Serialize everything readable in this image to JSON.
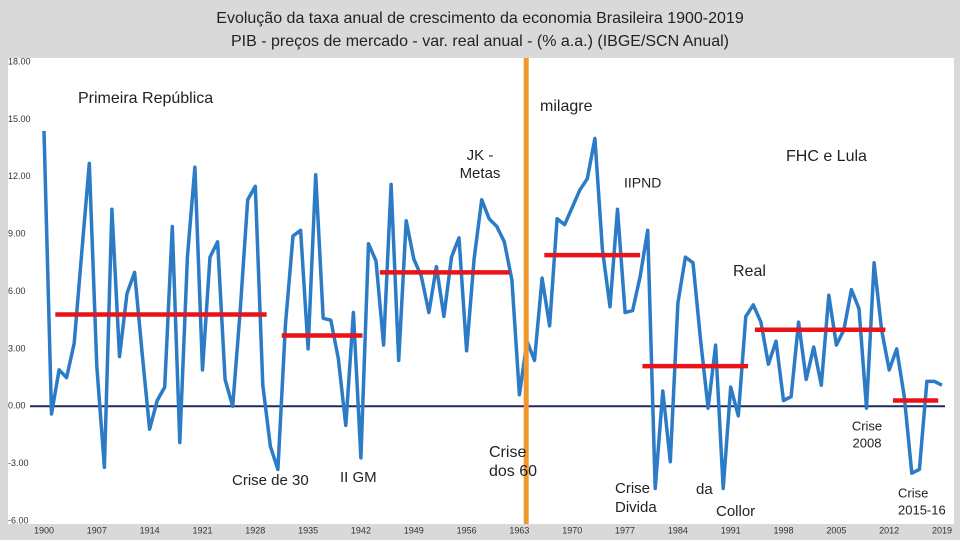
{
  "chart_data": {
    "type": "line",
    "title": "Evolução da taxa anual de crescimento da economia Brasileira 1900-2019",
    "subtitle": "PIB - preços de mercado - var. real anual - (% a.a.) (IBGE/SCN Anual)",
    "x": [
      1900,
      1901,
      1902,
      1903,
      1904,
      1905,
      1906,
      1907,
      1908,
      1909,
      1910,
      1911,
      1912,
      1913,
      1914,
      1915,
      1916,
      1917,
      1918,
      1919,
      1920,
      1921,
      1922,
      1923,
      1924,
      1925,
      1926,
      1927,
      1928,
      1929,
      1930,
      1931,
      1932,
      1933,
      1934,
      1935,
      1936,
      1937,
      1938,
      1939,
      1940,
      1941,
      1942,
      1943,
      1944,
      1945,
      1946,
      1947,
      1948,
      1949,
      1950,
      1951,
      1952,
      1953,
      1954,
      1955,
      1956,
      1957,
      1958,
      1959,
      1960,
      1961,
      1962,
      1963,
      1964,
      1965,
      1966,
      1967,
      1968,
      1969,
      1970,
      1971,
      1972,
      1973,
      1974,
      1975,
      1976,
      1977,
      1978,
      1979,
      1980,
      1981,
      1982,
      1983,
      1984,
      1985,
      1986,
      1987,
      1988,
      1989,
      1990,
      1991,
      1992,
      1993,
      1994,
      1995,
      1996,
      1997,
      1998,
      1999,
      2000,
      2001,
      2002,
      2003,
      2004,
      2005,
      2006,
      2007,
      2008,
      2009,
      2010,
      2011,
      2012,
      2013,
      2014,
      2015,
      2016,
      2017,
      2018,
      2019
    ],
    "series": [
      {
        "color": "#2b7bc6",
        "values": [
          14.4,
          -0.4,
          1.9,
          1.5,
          3.3,
          8.0,
          12.7,
          2.1,
          -3.2,
          10.3,
          2.6,
          5.9,
          7.0,
          2.8,
          -1.2,
          0.3,
          1.0,
          9.4,
          -1.9,
          7.8,
          12.5,
          1.9,
          7.8,
          8.6,
          1.4,
          0.0,
          5.0,
          10.8,
          11.5,
          1.1,
          -2.1,
          -3.3,
          4.3,
          8.9,
          9.2,
          3.0,
          12.1,
          4.6,
          4.5,
          2.5,
          -1.0,
          4.9,
          -2.7,
          8.5,
          7.6,
          3.2,
          11.6,
          2.4,
          9.7,
          7.7,
          6.8,
          4.9,
          7.3,
          4.7,
          7.8,
          8.8,
          2.9,
          7.7,
          10.8,
          9.8,
          9.4,
          8.6,
          6.6,
          0.6,
          3.4,
          2.4,
          6.7,
          4.2,
          9.8,
          9.5,
          10.4,
          11.3,
          11.9,
          14.0,
          8.2,
          5.2,
          10.3,
          4.9,
          5.0,
          6.8,
          9.2,
          -4.3,
          0.8,
          -2.9,
          5.4,
          7.8,
          7.5,
          3.5,
          -0.1,
          3.2,
          -4.3,
          1.0,
          -0.5,
          4.7,
          5.3,
          4.4,
          2.2,
          3.4,
          0.3,
          0.5,
          4.4,
          1.4,
          3.1,
          1.1,
          5.8,
          3.2,
          4.0,
          6.1,
          5.1,
          -0.1,
          7.5,
          4.0,
          1.9,
          3.0,
          0.5,
          -3.5,
          -3.3,
          1.3,
          1.3,
          1.1
        ]
      }
    ],
    "period_averages": {
      "color": "#e8141a",
      "segments": [
        {
          "start": 1901.5,
          "end": 1929.5,
          "value": 4.8
        },
        {
          "start": 1931.5,
          "end": 1942.2,
          "value": 3.7
        },
        {
          "start": 1944.5,
          "end": 1961.7,
          "value": 7.0
        },
        {
          "start": 1966.3,
          "end": 1979.0,
          "value": 7.9
        },
        {
          "start": 1979.3,
          "end": 1993.3,
          "value": 2.1
        },
        {
          "start": 1994.2,
          "end": 2011.5,
          "value": 4.0
        },
        {
          "start": 2012.5,
          "end": 2018.5,
          "value": 0.3
        }
      ]
    },
    "vline": {
      "x": 1963.9,
      "color": "#f0982c"
    },
    "zero_line_color": "#1f2b5a",
    "xlim": [
      1900,
      2019
    ],
    "xticks": [
      1900,
      1907,
      1914,
      1921,
      1928,
      1935,
      1942,
      1949,
      1956,
      1963,
      1970,
      1977,
      1984,
      1991,
      1998,
      2005,
      2012,
      2019
    ],
    "ylim": [
      -6,
      18
    ],
    "yticks": [
      {
        "value": -6,
        "label": "-6.00"
      },
      {
        "value": -3,
        "label": "-3.00"
      },
      {
        "value": 0,
        "label": "0.00"
      },
      {
        "value": 3,
        "label": "3.00"
      },
      {
        "value": 6,
        "label": "6.00"
      },
      {
        "value": 9,
        "label": "9.00"
      },
      {
        "value": 12,
        "label": "12.00"
      },
      {
        "value": 15,
        "label": "15.00"
      },
      {
        "value": 18,
        "label": "18.00"
      }
    ],
    "annotations": [
      "Primeira República",
      "milagre",
      "JK -",
      "Metas",
      "FHC e Lula",
      "IIPND",
      "Real",
      "Crise de 30",
      "II GM",
      "Crise",
      "dos 60",
      "Crise",
      "Divida",
      "da",
      "Collor",
      "Crise",
      "2008",
      "Crise",
      "2015-16"
    ]
  }
}
